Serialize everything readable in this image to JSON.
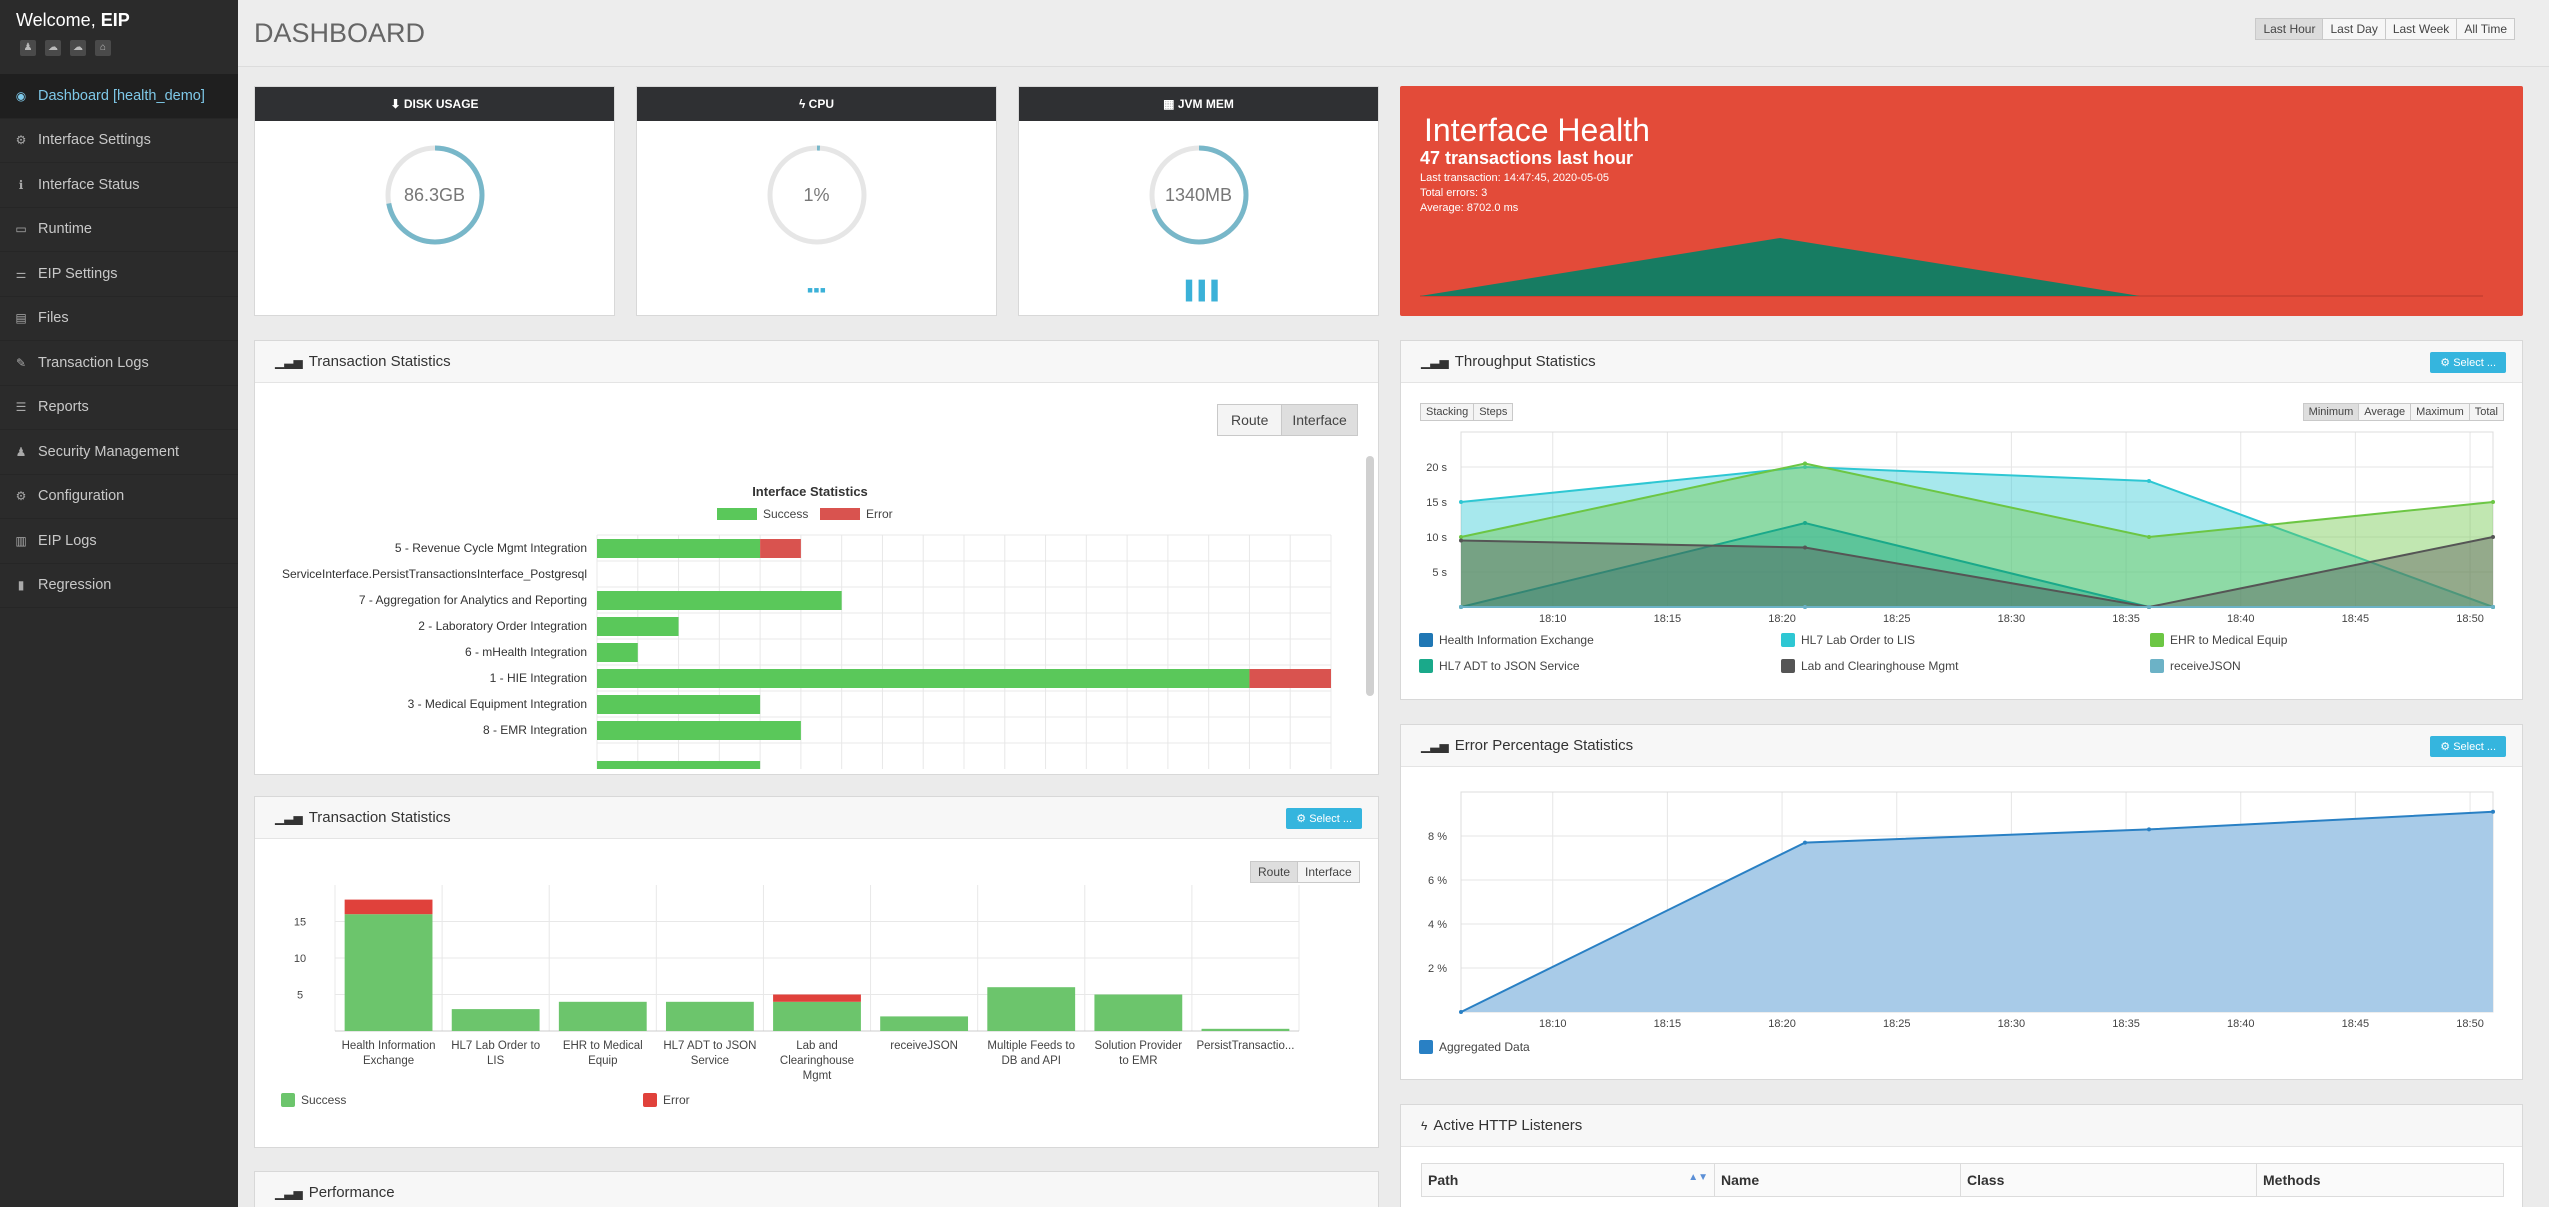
{
  "sidebar": {
    "welcome_prefix": "Welcome,",
    "welcome_user": "EIP",
    "items": [
      {
        "label": "Dashboard [health_demo]",
        "icon": "dashboard-icon",
        "glyph": "◉"
      },
      {
        "label": "Interface Settings",
        "icon": "gears-icon",
        "glyph": "⚙"
      },
      {
        "label": "Interface Status",
        "icon": "info-icon",
        "glyph": "ℹ"
      },
      {
        "label": "Runtime",
        "icon": "monitor-icon",
        "glyph": "▭"
      },
      {
        "label": "EIP Settings",
        "icon": "sliders-icon",
        "glyph": "⚌"
      },
      {
        "label": "Files",
        "icon": "files-icon",
        "glyph": "▤"
      },
      {
        "label": "Transaction Logs",
        "icon": "edit-icon",
        "glyph": "✎"
      },
      {
        "label": "Reports",
        "icon": "list-icon",
        "glyph": "☰"
      },
      {
        "label": "Security Management",
        "icon": "users-icon",
        "glyph": "♟"
      },
      {
        "label": "Configuration",
        "icon": "gear-icon",
        "glyph": "⚙"
      },
      {
        "label": "EIP Logs",
        "icon": "file-icon",
        "glyph": "▥"
      },
      {
        "label": "Regression",
        "icon": "bar-chart-icon",
        "glyph": "▮"
      }
    ]
  },
  "header": {
    "title": "DASHBOARD",
    "ranges": [
      "Last Hour",
      "Last Day",
      "Last Week",
      "All Time"
    ]
  },
  "gauges": [
    {
      "title": "DISK USAGE",
      "value": "86.3GB",
      "fraction": 0.72,
      "icon": "download-icon",
      "glyph": "⬇",
      "foot": ""
    },
    {
      "title": "CPU",
      "value": "1%",
      "fraction": 0.01,
      "icon": "bolt-icon",
      "glyph": "ϟ",
      "foot": "▪▪▪"
    },
    {
      "title": "JVM MEM",
      "value": "1340MB",
      "fraction": 0.7,
      "icon": "grid-icon",
      "glyph": "▦",
      "foot": "▐▐▐"
    }
  ],
  "health": {
    "title": "Interface Health",
    "summary": "47 transactions last hour",
    "last": "Last transaction: 14:47:45, 2020-05-05",
    "errors": "Total errors: 3",
    "average": "Average: 8702.0 ms",
    "colors": {
      "bg": "#e34b39",
      "area": "#177c62"
    }
  },
  "tx_interface": {
    "title": "Transaction Statistics",
    "toggle": [
      "Route",
      "Interface"
    ],
    "chart_data": {
      "type": "bar",
      "orientation": "horizontal",
      "stacked": true,
      "title": "Interface Statistics",
      "categories": [
        "5 - Revenue Cycle Mgmt Integration",
        "ServiceInterface.PersistTransactionsInterface_Postgresql",
        "7 - Aggregation for Analytics and Reporting",
        "2 - Laboratory Order Integration",
        "6 - mHealth Integration",
        "1 - HIE Integration",
        "3 - Medical Equipment Integration",
        "8 - EMR Integration"
      ],
      "series": [
        {
          "name": "Success",
          "color": "#5ac85a",
          "values": [
            4,
            0,
            6,
            2,
            1,
            16,
            4,
            5
          ]
        },
        {
          "name": "Error",
          "color": "#d9534f",
          "values": [
            1,
            0,
            0,
            0,
            0,
            2,
            0,
            0
          ]
        }
      ],
      "xlim": [
        0,
        18
      ],
      "grid": true,
      "legend": "top"
    }
  },
  "tx_route": {
    "title": "Transaction Statistics",
    "select": "Select ...",
    "toggle": [
      "Route",
      "Interface"
    ],
    "chart_data": {
      "type": "bar",
      "stacked": true,
      "categories": [
        [
          "Health Information",
          "Exchange"
        ],
        [
          "HL7 Lab Order to",
          "LIS"
        ],
        [
          "EHR to Medical",
          "Equip"
        ],
        [
          "HL7 ADT to JSON",
          "Service"
        ],
        [
          "Lab and",
          "Clearinghouse",
          "Mgmt"
        ],
        [
          "receiveJSON"
        ],
        [
          "Multiple Feeds to",
          "DB and API"
        ],
        [
          "Solution Provider",
          "to EMR"
        ],
        [
          "PersistTransactio..."
        ]
      ],
      "series": [
        {
          "name": "Success",
          "color": "#6cc56c",
          "values": [
            16,
            3,
            4,
            4,
            4,
            2,
            6,
            5,
            0.3
          ]
        },
        {
          "name": "Error",
          "color": "#e0413b",
          "values": [
            2,
            0,
            0,
            0,
            1,
            0,
            0,
            0,
            0
          ]
        }
      ],
      "yticks": [
        5,
        10,
        15
      ],
      "ylim": [
        0,
        20
      ],
      "legend": "bottom"
    }
  },
  "performance": {
    "title": "Performance"
  },
  "throughput": {
    "title": "Throughput Statistics",
    "select": "Select ...",
    "left_toggle": [
      "Stacking",
      "Steps"
    ],
    "right_toggle": [
      "Minimum",
      "Average",
      "Maximum",
      "Total"
    ],
    "chart_data": {
      "type": "area",
      "x": [
        "18:06",
        "18:21",
        "18:36",
        "18:51"
      ],
      "xticks": [
        "18:10",
        "18:15",
        "18:20",
        "18:25",
        "18:30",
        "18:35",
        "18:40",
        "18:45",
        "18:50"
      ],
      "yticks": [
        "5 s",
        "10 s",
        "15 s",
        "20 s"
      ],
      "ylim": [
        0,
        25
      ],
      "series": [
        {
          "name": "Health Information Exchange",
          "color": "#1f77b4",
          "values": [
            0,
            0,
            0,
            0
          ]
        },
        {
          "name": "HL7 Lab Order to LIS",
          "color": "#2ec7d3",
          "values": [
            15,
            20,
            18,
            0
          ]
        },
        {
          "name": "EHR to Medical Equip",
          "color": "#6cc644",
          "values": [
            10,
            20.5,
            10,
            15
          ]
        },
        {
          "name": "HL7 ADT to JSON Service",
          "color": "#1aa98a",
          "values": [
            0,
            12,
            0,
            0
          ]
        },
        {
          "name": "Lab and Clearinghouse Mgmt",
          "color": "#555555",
          "values": [
            9.5,
            8.5,
            0,
            10
          ]
        },
        {
          "name": "receiveJSON",
          "color": "#6cb2c6",
          "values": [
            0,
            0,
            0,
            0
          ]
        }
      ],
      "legend": "bottom"
    }
  },
  "error_pct": {
    "title": "Error Percentage Statistics",
    "select": "Select ...",
    "chart_data": {
      "type": "area",
      "x": [
        "18:06",
        "18:21",
        "18:36",
        "18:51"
      ],
      "xticks": [
        "18:10",
        "18:15",
        "18:20",
        "18:25",
        "18:30",
        "18:35",
        "18:40",
        "18:45",
        "18:50"
      ],
      "yticks": [
        "2 %",
        "4 %",
        "6 %",
        "8 %"
      ],
      "ylim": [
        0,
        10
      ],
      "series": [
        {
          "name": "Aggregated Data",
          "color": "#2980c4",
          "fill": "#a8cbe8",
          "values": [
            0,
            7.7,
            8.3,
            9.1
          ]
        }
      ],
      "legend": "bottom"
    }
  },
  "http": {
    "title": "Active HTTP Listeners",
    "columns": [
      "Path",
      "Name",
      "Class",
      "Methods"
    ]
  }
}
